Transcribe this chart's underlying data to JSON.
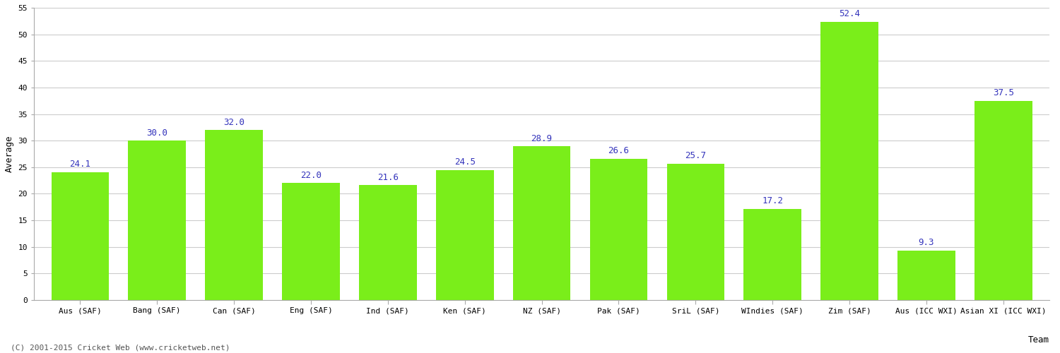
{
  "categories": [
    "Aus (SAF)",
    "Bang (SAF)",
    "Can (SAF)",
    "Eng (SAF)",
    "Ind (SAF)",
    "Ken (SAF)",
    "NZ (SAF)",
    "Pak (SAF)",
    "SriL (SAF)",
    "WIndies (SAF)",
    "Zim (SAF)",
    "Aus (ICC WXI)",
    "Asian XI (ICC WXI)"
  ],
  "values": [
    24.1,
    30.0,
    32.0,
    22.0,
    21.6,
    24.5,
    28.9,
    26.6,
    25.7,
    17.2,
    52.4,
    9.3,
    37.5
  ],
  "bar_color": "#7aee1a",
  "bar_edge_color": "#7aee1a",
  "label_color": "#3333bb",
  "xlabel": "Team",
  "ylabel": "Average",
  "ylim": [
    0,
    55
  ],
  "yticks": [
    0,
    5,
    10,
    15,
    20,
    25,
    30,
    35,
    40,
    45,
    50,
    55
  ],
  "background_color": "#ffffff",
  "grid_color": "#cccccc",
  "label_fontsize": 9,
  "axis_label_fontsize": 9,
  "tick_fontsize": 8,
  "footer_text": "(C) 2001-2015 Cricket Web (www.cricketweb.net)"
}
